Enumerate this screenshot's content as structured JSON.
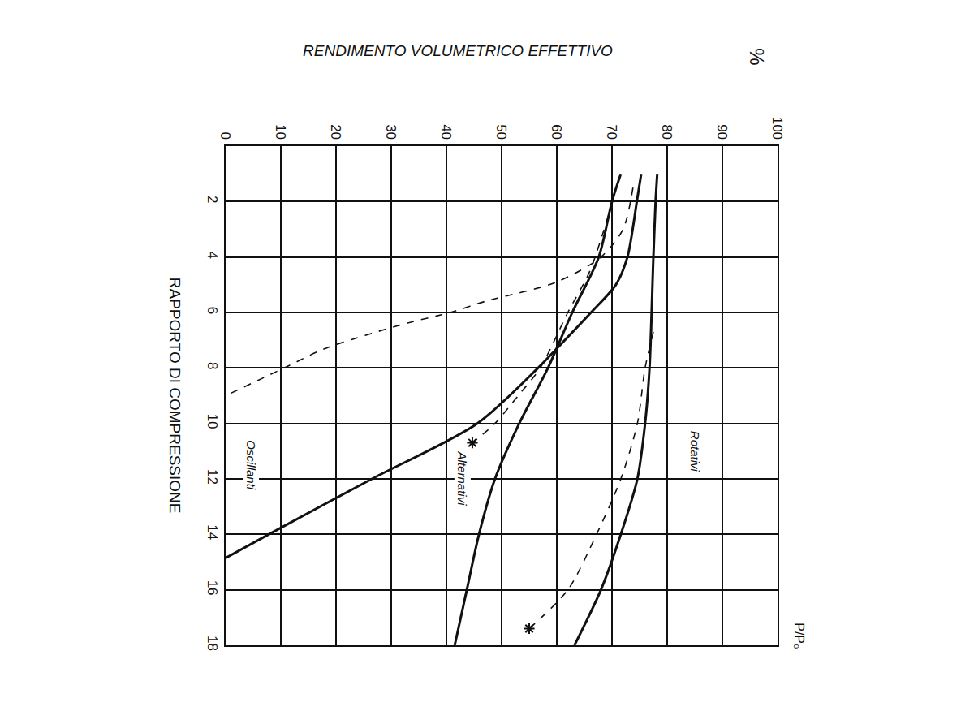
{
  "chart_data": {
    "type": "line",
    "title": "RENDIMENTO VOLUMETRICO EFFETTIVO",
    "x_label": "%",
    "y_label": "RAPPORTO DI COMPRESSIONE",
    "y_unit_label": "P/P₀",
    "xlim": [
      0,
      100
    ],
    "xticks": [
      0,
      10,
      20,
      30,
      40,
      50,
      60,
      70,
      80,
      90,
      100
    ],
    "ylim": [
      18,
      0
    ],
    "yticks": [
      2,
      4,
      6,
      8,
      10,
      12,
      14,
      16,
      18
    ],
    "grid": true,
    "color": "#111111",
    "series": [
      {
        "name": "Oscillanti",
        "line_style": "solid",
        "x": [
          75.3,
          74.5,
          72.8,
          70.7,
          66.2,
          60.0,
          56.6,
          45.6,
          26.5,
          7.8,
          0
        ],
        "values": [
          1,
          2,
          4,
          5,
          6,
          7.3,
          8,
          10,
          12,
          14,
          14.85
        ]
      },
      {
        "name": "Oscillanti",
        "line_style": "dashed",
        "marker": "none",
        "x": [
          73.8,
          72.0,
          68.0,
          60.0,
          47.0,
          40.7,
          32.6,
          18.0,
          10.6,
          0
        ],
        "values": [
          1.5,
          3,
          4,
          4.9,
          5.6,
          6,
          6.4,
          7.3,
          8,
          9
        ]
      },
      {
        "name": "Alternativi",
        "line_style": "solid",
        "x": [
          71.6,
          70.0,
          67.6,
          62.8,
          58.4,
          53.2,
          48.8,
          45.9,
          43.7,
          41.5
        ],
        "values": [
          1,
          2,
          4,
          6,
          8,
          10,
          12,
          14,
          16,
          18
        ]
      },
      {
        "name": "Alternativi",
        "line_style": "dashed",
        "marker": "asterisk",
        "x": [
          70.1,
          66.0,
          62.0,
          57.0,
          53.0,
          48.8,
          44.7
        ],
        "values": [
          2,
          4.5,
          6,
          8,
          9,
          10,
          10.7
        ]
      },
      {
        "name": "Rotativi",
        "line_style": "solid",
        "x": [
          78.2,
          77.9,
          77.5,
          76.8,
          76.0,
          74.6,
          71.6,
          68.0,
          63.2
        ],
        "values": [
          1,
          2,
          4,
          8,
          10,
          12,
          14,
          16,
          18
        ]
      },
      {
        "name": "Rotativi",
        "line_style": "dashed",
        "marker": "asterisk",
        "x": [
          77.5,
          76.0,
          74.6,
          71.6,
          67.2,
          62.0,
          55.0
        ],
        "values": [
          6.7,
          8,
          10,
          12,
          14,
          16,
          17.4
        ]
      }
    ]
  }
}
